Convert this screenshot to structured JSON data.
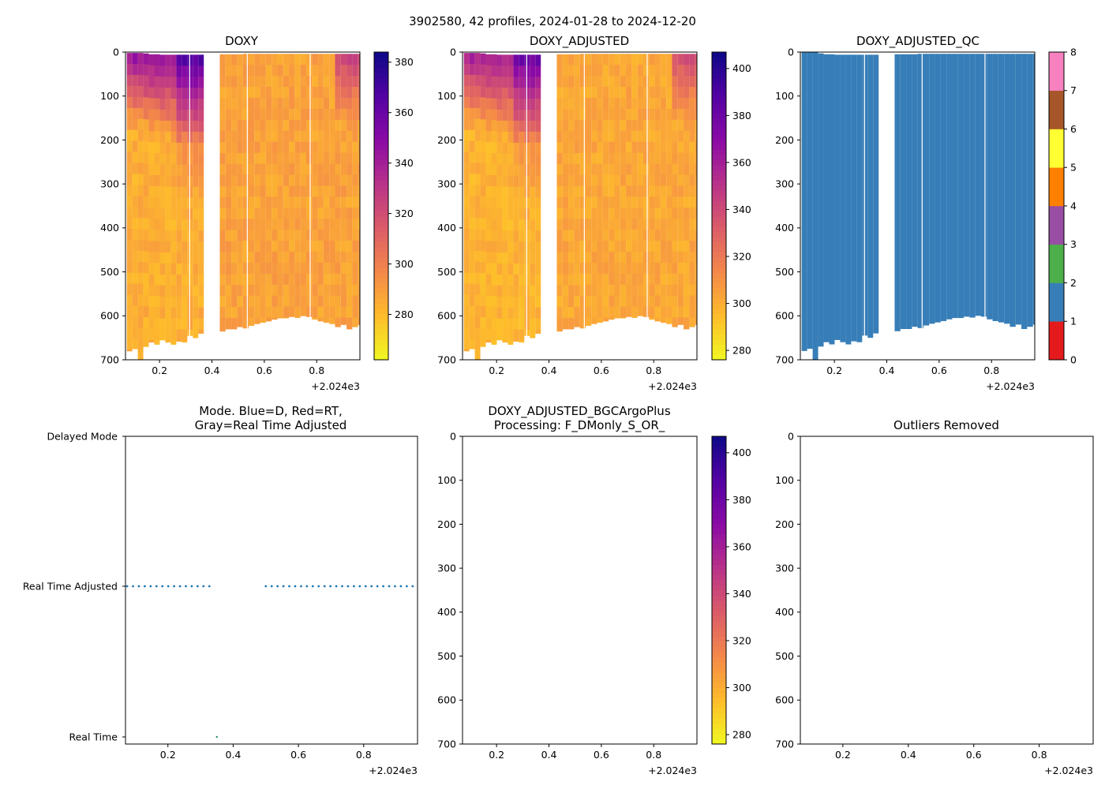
{
  "figure": {
    "suptitle": "3902580, 42 profiles, 2024-01-28 to 2024-12-20",
    "offset_label": "+2.024e3"
  },
  "panels": {
    "doxy": {
      "title": "DOXY"
    },
    "doxy_adjusted": {
      "title": "DOXY_ADJUSTED"
    },
    "doxy_adjusted_qc": {
      "title": "DOXY_ADJUSTED_QC"
    },
    "mode": {
      "title_line1": "Mode. Blue=D, Red=RT,",
      "title_line2": "Gray=Real Time Adjusted"
    },
    "bgc": {
      "title_line1": "DOXY_ADJUSTED_BGCArgoPlus",
      "title_line2": "Processing: F_DMonly_S_OR_"
    },
    "outliers": {
      "title": "Outliers Removed"
    }
  },
  "colors": {
    "qc_good": "#377eb8",
    "mode_dot": "#1f77b4",
    "qc_scale": [
      "#e41a1c",
      "#377eb8",
      "#4daf4a",
      "#984ea3",
      "#ff7f00",
      "#ffff33",
      "#a65628",
      "#f781bf",
      "#999999"
    ]
  },
  "chart_data": [
    {
      "type": "heatmap",
      "title": "DOXY",
      "x_offset": 2024,
      "xlim": [
        0.07,
        0.965
      ],
      "ylim": [
        700,
        0
      ],
      "x_ticks": [
        0.2,
        0.4,
        0.6,
        0.8
      ],
      "x_tick_labels": [
        "0.2",
        "0.4",
        "0.6",
        "0.8"
      ],
      "y_ticks": [
        0,
        100,
        200,
        300,
        400,
        500,
        600,
        700
      ],
      "y_tick_labels": [
        "0",
        "100",
        "200",
        "300",
        "400",
        "500",
        "600",
        "700"
      ],
      "colormap": "plasma_r",
      "clim": [
        262,
        384
      ],
      "colorbar_ticks": [
        280,
        300,
        320,
        340,
        360,
        380
      ],
      "colorbar_tick_labels": [
        "280",
        "300",
        "320",
        "340",
        "360",
        "380"
      ],
      "profile_x": [
        0.075,
        0.096,
        0.117,
        0.138,
        0.159,
        0.18,
        0.201,
        0.222,
        0.243,
        0.264,
        0.285,
        0.306,
        0.327,
        0.348,
        0.43,
        0.452,
        0.474,
        0.496,
        0.518,
        0.54,
        0.562,
        0.584,
        0.606,
        0.628,
        0.65,
        0.672,
        0.694,
        0.716,
        0.738,
        0.76,
        0.782,
        0.804,
        0.826,
        0.848,
        0.87,
        0.892,
        0.914,
        0.936,
        0.958
      ],
      "profile_max_depth": [
        680,
        675,
        700,
        670,
        660,
        665,
        655,
        660,
        665,
        658,
        660,
        645,
        650,
        640,
        635,
        630,
        630,
        625,
        628,
        622,
        618,
        615,
        612,
        608,
        605,
        605,
        602,
        604,
        600,
        602,
        608,
        612,
        615,
        618,
        625,
        620,
        630,
        625,
        620
      ],
      "profile_top_depth": [
        2,
        2,
        2,
        3,
        5,
        5,
        6,
        6,
        6,
        6,
        6,
        6,
        6,
        6,
        5,
        5,
        5,
        5,
        4,
        4,
        4,
        4,
        4,
        4,
        4,
        4,
        4,
        4,
        4,
        4,
        4,
        4,
        4,
        4,
        4,
        4,
        4,
        4,
        4
      ]
    },
    {
      "type": "heatmap",
      "title": "DOXY_ADJUSTED",
      "x_offset": 2024,
      "xlim": [
        0.07,
        0.965
      ],
      "ylim": [
        700,
        0
      ],
      "x_ticks": [
        0.2,
        0.4,
        0.6,
        0.8
      ],
      "x_tick_labels": [
        "0.2",
        "0.4",
        "0.6",
        "0.8"
      ],
      "y_ticks": [
        0,
        100,
        200,
        300,
        400,
        500,
        600,
        700
      ],
      "y_tick_labels": [
        "0",
        "100",
        "200",
        "300",
        "400",
        "500",
        "600",
        "700"
      ],
      "colormap": "plasma_r",
      "clim": [
        276,
        407
      ],
      "colorbar_ticks": [
        280,
        300,
        320,
        340,
        360,
        380,
        400
      ],
      "colorbar_tick_labels": [
        "280",
        "300",
        "320",
        "340",
        "360",
        "380",
        "400"
      ]
    },
    {
      "type": "heatmap",
      "title": "DOXY_ADJUSTED_QC",
      "x_offset": 2024,
      "xlim": [
        0.07,
        0.965
      ],
      "ylim": [
        700,
        0
      ],
      "x_ticks": [
        0.2,
        0.4,
        0.6,
        0.8
      ],
      "x_tick_labels": [
        "0.2",
        "0.4",
        "0.6",
        "0.8"
      ],
      "y_ticks": [
        0,
        100,
        200,
        300,
        400,
        500,
        600,
        700
      ],
      "y_tick_labels": [
        "0",
        "100",
        "200",
        "300",
        "400",
        "500",
        "600",
        "700"
      ],
      "qc_value_shown": 1,
      "colorbar_ticks": [
        0,
        1,
        2,
        3,
        4,
        5,
        6,
        7,
        8
      ],
      "colorbar_tick_labels": [
        "0",
        "1",
        "2",
        "3",
        "4",
        "5",
        "6",
        "7",
        "8"
      ]
    },
    {
      "type": "scatter",
      "title": "Mode. Blue=D, Red=RT, Gray=Real Time Adjusted",
      "x_offset": 2024,
      "xlim": [
        0.07,
        0.965
      ],
      "x_ticks": [
        0.2,
        0.4,
        0.6,
        0.8
      ],
      "x_tick_labels": [
        "0.2",
        "0.4",
        "0.6",
        "0.8"
      ],
      "y_categories": [
        "Real Time",
        "Real Time Adjusted",
        "Delayed Mode"
      ],
      "points_real_time_adjusted_x": [
        0.075,
        0.093,
        0.111,
        0.129,
        0.147,
        0.165,
        0.183,
        0.201,
        0.219,
        0.237,
        0.255,
        0.273,
        0.291,
        0.309,
        0.327,
        0.5,
        0.518,
        0.536,
        0.554,
        0.572,
        0.59,
        0.608,
        0.626,
        0.644,
        0.662,
        0.68,
        0.698,
        0.716,
        0.734,
        0.752,
        0.77,
        0.788,
        0.806,
        0.824,
        0.842,
        0.86,
        0.878,
        0.896,
        0.914,
        0.932,
        0.95
      ],
      "points_real_time_x": [
        0.35
      ]
    },
    {
      "type": "heatmap",
      "title": "DOXY_ADJUSTED_BGCArgoPlus Processing: F_DMonly_S_OR_",
      "x_offset": 2024,
      "xlim": [
        0.07,
        0.965
      ],
      "ylim": [
        700,
        0
      ],
      "x_ticks": [
        0.2,
        0.4,
        0.6,
        0.8
      ],
      "x_tick_labels": [
        "0.2",
        "0.4",
        "0.6",
        "0.8"
      ],
      "y_ticks": [
        0,
        100,
        200,
        300,
        400,
        500,
        600,
        700
      ],
      "y_tick_labels": [
        "0",
        "100",
        "200",
        "300",
        "400",
        "500",
        "600",
        "700"
      ],
      "colormap": "plasma_r",
      "clim": [
        276,
        407
      ],
      "colorbar_ticks": [
        280,
        300,
        320,
        340,
        360,
        380,
        400
      ],
      "colorbar_tick_labels": [
        "280",
        "300",
        "320",
        "340",
        "360",
        "380",
        "400"
      ],
      "values": []
    },
    {
      "type": "scatter",
      "title": "Outliers Removed",
      "x_offset": 2024,
      "xlim": [
        0.07,
        0.965
      ],
      "ylim": [
        700,
        0
      ],
      "x_ticks": [
        0.2,
        0.4,
        0.6,
        0.8
      ],
      "x_tick_labels": [
        "0.2",
        "0.4",
        "0.6",
        "0.8"
      ],
      "y_ticks": [
        0,
        100,
        200,
        300,
        400,
        500,
        600,
        700
      ],
      "y_tick_labels": [
        "0",
        "100",
        "200",
        "300",
        "400",
        "500",
        "600",
        "700"
      ],
      "values": []
    }
  ]
}
